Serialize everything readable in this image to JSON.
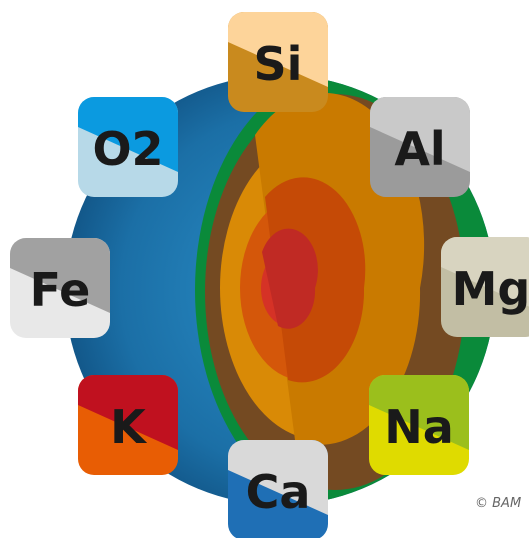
{
  "tiles": [
    {
      "label": "Si"
    },
    {
      "label": "Al"
    },
    {
      "label": "Mg"
    },
    {
      "label": "Na"
    },
    {
      "label": "Ca"
    },
    {
      "label": "K"
    },
    {
      "label": "Fe"
    },
    {
      "label": "O2"
    }
  ],
  "credit": "© BAM"
}
